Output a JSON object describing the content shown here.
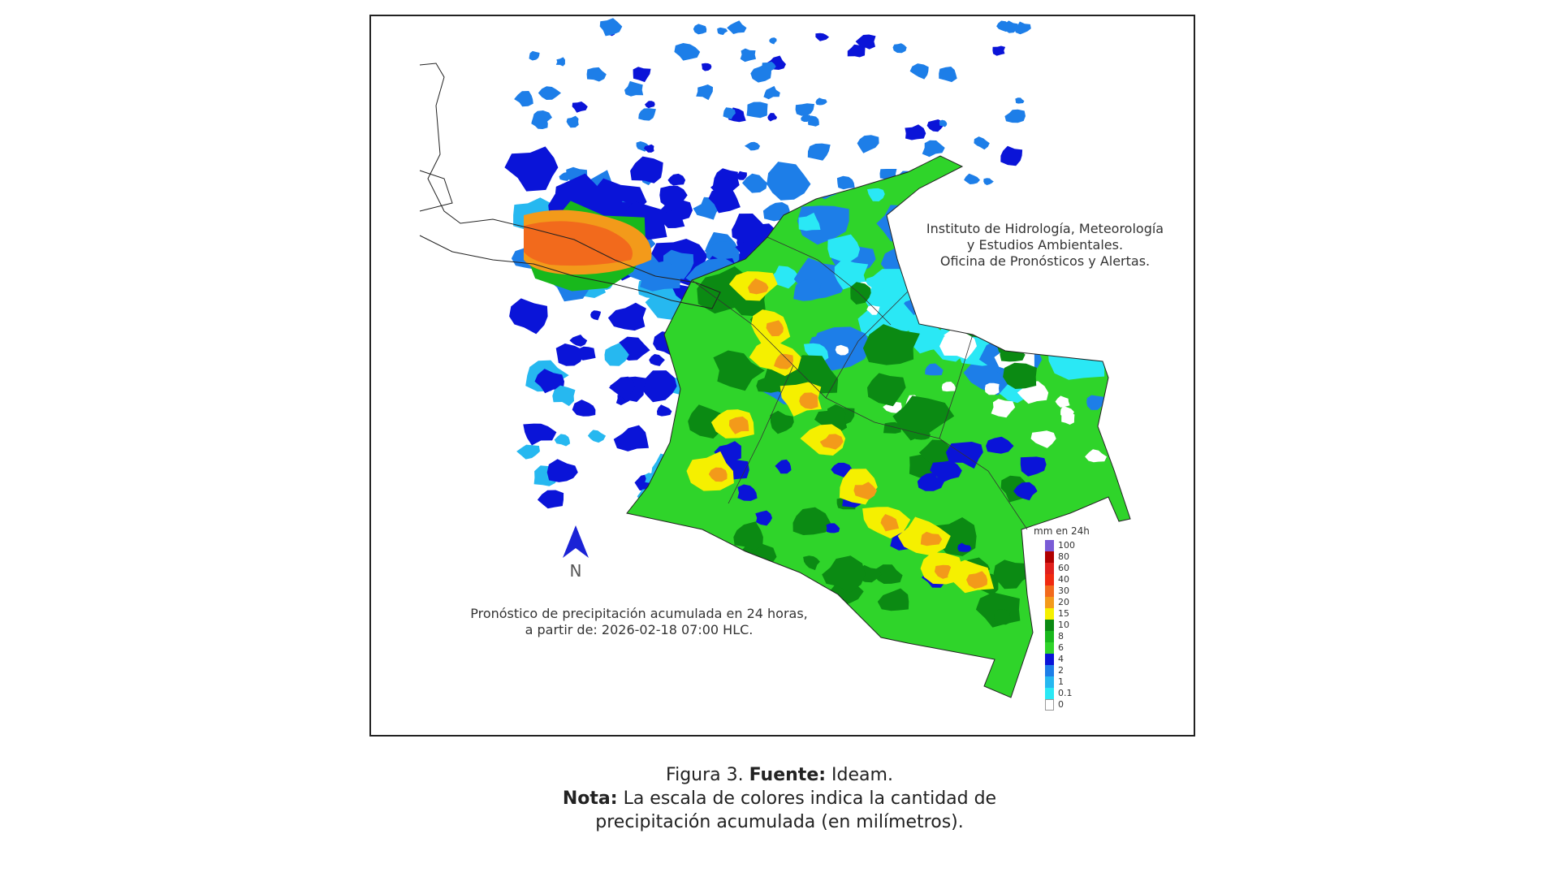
{
  "map": {
    "institution_text": [
      "Instituto de Hidrología, Meteorología",
      "y Estudios Ambientales.",
      "Oficina de Pronósticos y Alertas."
    ],
    "forecast_text": [
      "Pronóstico de precipitación acumulada en 24 horas,",
      "a partir de: 2026-02-18 07:00 HLC."
    ],
    "north_label": "N",
    "north_arrow_color": "#1a22d6",
    "legend": {
      "title": "mm en 24h",
      "labels": [
        "100",
        "80",
        "60",
        "40",
        "30",
        "20",
        "15",
        "10",
        "8",
        "6",
        "4",
        "2",
        "1",
        "0.1",
        "0"
      ],
      "colors": [
        "#7a5cd6",
        "#b00000",
        "#e0201c",
        "#f02a10",
        "#f26a1c",
        "#f39a1a",
        "#f5f000",
        "#0b8a13",
        "#18b81c",
        "#2fd42a",
        "#0a14d8",
        "#1d7ee8",
        "#26b8f0",
        "#2ae8f5",
        "#ffffff"
      ]
    }
  },
  "caption": {
    "line1_prefix": "Figura 3.",
    "line1_bold": "Fuente:",
    "line1_suffix": "Ideam.",
    "line2_bold": "Nota:",
    "line2_suffix": "La escala de colores indica la cantidad de",
    "line3": "precipitación acumulada (en milímetros)."
  }
}
